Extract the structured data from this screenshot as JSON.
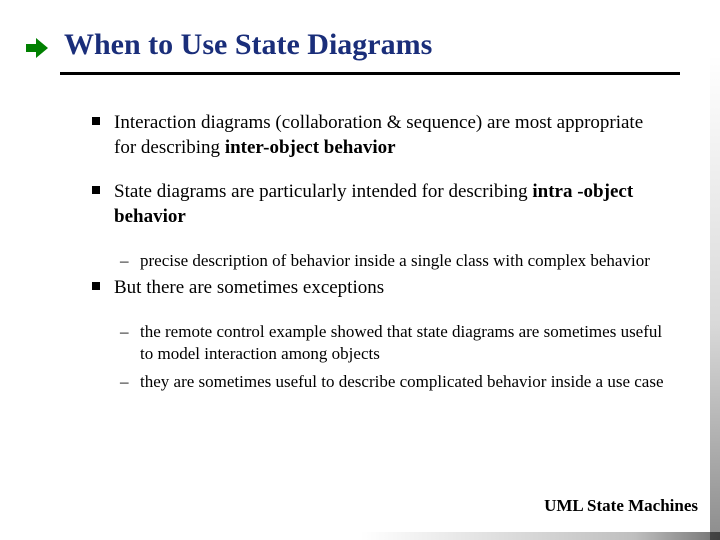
{
  "colors": {
    "title": "#1a2e7a",
    "rule": "#000000",
    "arrow": "#008000",
    "text": "#000000",
    "background": "#ffffff"
  },
  "typography": {
    "family": "Times New Roman",
    "title_size_pt": 30,
    "title_weight": "bold",
    "l1_size_pt": 19,
    "l2_size_pt": 17,
    "footer_size_pt": 17
  },
  "title": "When to Use State Diagrams",
  "footer": "UML State Machines",
  "bullets": [
    {
      "runs": [
        {
          "t": "Interaction diagrams (collaboration & sequence) are most appropriate for describing "
        },
        {
          "t": "inter-object behavior",
          "bold": true
        }
      ],
      "sub": []
    },
    {
      "runs": [
        {
          "t": "State diagrams are particularly intended for describing "
        },
        {
          "t": "intra -object behavior",
          "bold": true
        }
      ],
      "sub": [
        {
          "runs": [
            {
              "t": "precise description of behavior inside a single class with complex behavior"
            }
          ]
        }
      ]
    },
    {
      "runs": [
        {
          "t": "But there are sometimes exceptions"
        }
      ],
      "sub": [
        {
          "runs": [
            {
              "t": "the remote control example showed that state diagrams are sometimes useful to model interaction among objects"
            }
          ]
        },
        {
          "runs": [
            {
              "t": "they are sometimes useful to describe complicated behavior inside a use case"
            }
          ]
        }
      ]
    }
  ]
}
